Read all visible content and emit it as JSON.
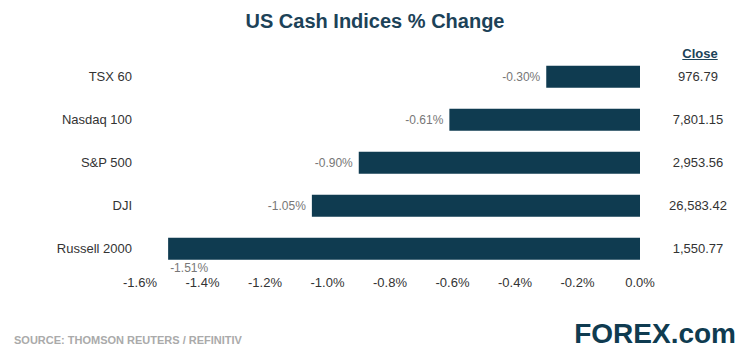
{
  "chart_data": {
    "type": "bar",
    "title": "US Cash Indices % Change",
    "orientation": "horizontal",
    "categories": [
      "TSX 60",
      "Nasdaq 100",
      "S&P 500",
      "DJI",
      "Russell 2000"
    ],
    "values": [
      -0.3,
      -0.61,
      -0.9,
      -1.05,
      -1.51
    ],
    "value_labels": [
      "-0.30%",
      "-0.61%",
      "-0.90%",
      "-1.05%",
      "-1.51%"
    ],
    "data_labels": true,
    "color": "#0f3b50",
    "grid": false,
    "xlim": [
      -1.6,
      0.0
    ],
    "xticks": [
      {
        "value": -1.6,
        "label": "-1.6%"
      },
      {
        "value": -1.4,
        "label": "-1.4%"
      },
      {
        "value": -1.2,
        "label": "-1.2%"
      },
      {
        "value": -1.0,
        "label": "-1.0%"
      },
      {
        "value": -0.8,
        "label": "-0.8%"
      },
      {
        "value": -0.6,
        "label": "-0.6%"
      },
      {
        "value": -0.4,
        "label": "-0.4%"
      },
      {
        "value": -0.2,
        "label": "-0.2%"
      },
      {
        "value": 0.0,
        "label": "0.0%"
      }
    ],
    "close": {
      "title": "Close",
      "labels": [
        "976.79",
        "7,801.15",
        "2,953.56",
        "26,583.42",
        "1,550.77"
      ]
    },
    "source": "SOURCE: THOMSON REUTERS / REFINITIV",
    "logo": "FOREX.com"
  }
}
